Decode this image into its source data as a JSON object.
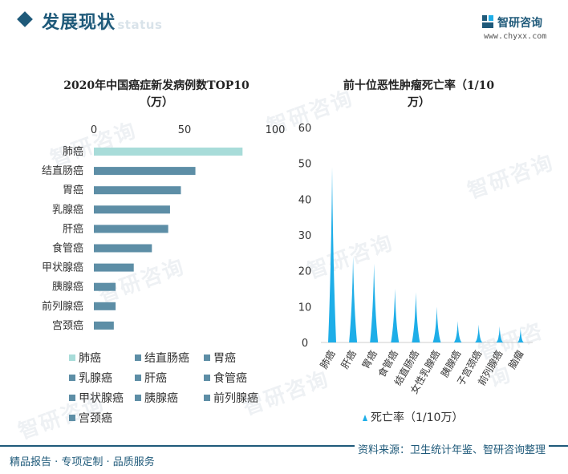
{
  "header": {
    "title": "发展现状",
    "title_en": "ment status",
    "brand_name": "智研咨询",
    "brand_url": "www.chyxx.com"
  },
  "watermark_text": "智研咨询",
  "colors": {
    "primary": "#1f5a7a",
    "bar": "#5d8ea6",
    "bar_highlight": "#a8dcd9",
    "spike": "#1eaee8"
  },
  "chart_data": [
    {
      "type": "bar",
      "orientation": "horizontal",
      "title_line1": "2020年中国癌症新发病例数TOP10",
      "title_line2": "（万）",
      "categories": [
        "肺癌",
        "结直肠癌",
        "胃癌",
        "乳腺癌",
        "肝癌",
        "食管癌",
        "甲状腺癌",
        "胰腺癌",
        "前列腺癌",
        "宫颈癌"
      ],
      "values": [
        82,
        56,
        48,
        42,
        41,
        32,
        22,
        12,
        12,
        11
      ],
      "xlim": [
        0,
        100
      ],
      "xticks": [
        "0",
        "50",
        "100"
      ],
      "legend_entries": [
        "肺癌",
        "结直肠癌",
        "胃癌",
        "乳腺癌",
        "肝癌",
        "食管癌",
        "甲状腺癌",
        "胰腺癌",
        "前列腺癌",
        "宫颈癌"
      ],
      "legend_position": "bottom"
    },
    {
      "type": "bar",
      "style": "spike",
      "title_line1": "前十位恶性肿瘤死亡率（1/10",
      "title_line2": "万）",
      "categories": [
        "肺癌",
        "肝癌",
        "胃癌",
        "食管癌",
        "结直肠癌",
        "女性乳腺癌",
        "胰腺癌",
        "子宫颈癌",
        "前列腺癌",
        "脑瘤"
      ],
      "series": [
        {
          "name": "死亡率（1/10万）",
          "values": [
            49,
            24,
            22,
            15,
            14,
            10,
            6,
            5,
            4.5,
            4
          ]
        }
      ],
      "ylim": [
        0,
        60
      ],
      "yticks": [
        "0",
        "10",
        "20",
        "30",
        "40",
        "50",
        "60"
      ],
      "legend_position": "bottom"
    }
  ],
  "footer": {
    "left": "精品报告 · 专项定制 · 品质服务",
    "right": "资料来源：卫生统计年鉴、智研咨询整理"
  }
}
